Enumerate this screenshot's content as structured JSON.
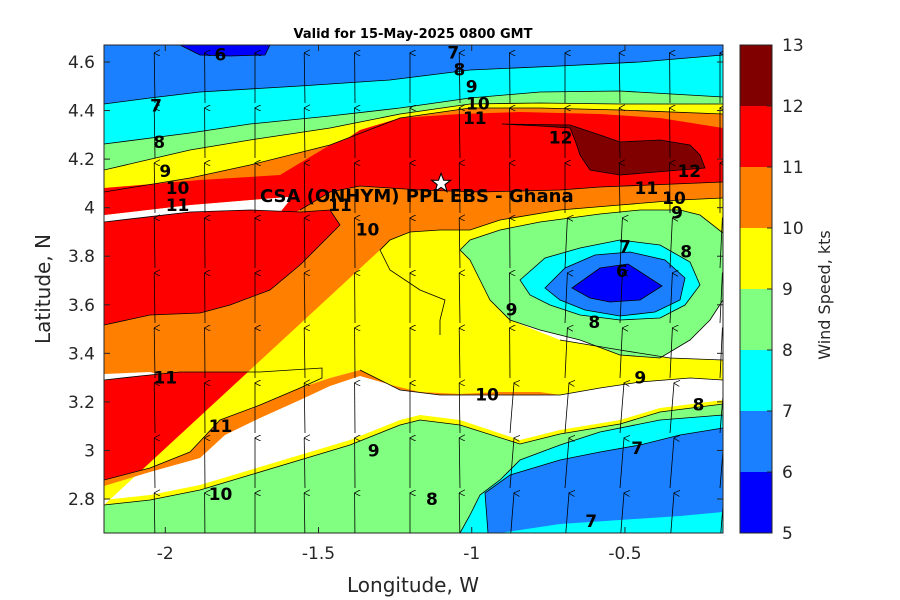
{
  "chart_data": {
    "type": "heatmap",
    "title": "Valid for 15-May-2025 0800 GMT",
    "xlabel": "Longitude, W",
    "ylabel": "Latitude, N",
    "colorbar_label": "Wind Speed, kts",
    "xlim": [
      -2.2,
      -0.18
    ],
    "ylim": [
      2.66,
      4.67
    ],
    "xticks": [
      -2,
      -1.5,
      -1,
      -0.5
    ],
    "xtick_labels": [
      "-2",
      "-1.5",
      "-1",
      "-0.5"
    ],
    "yticks": [
      2.8,
      3,
      3.2,
      3.4,
      3.6,
      3.8,
      4,
      4.2,
      4.4,
      4.6
    ],
    "ytick_labels": [
      "2.8",
      "3",
      "3.2",
      "3.4",
      "3.6",
      "3.8",
      "4",
      "4.2",
      "4.4",
      "4.6"
    ],
    "colorbar_ticks": [
      5,
      6,
      7,
      8,
      9,
      10,
      11,
      12,
      13
    ],
    "colorbar_tick_labels": [
      "5",
      "6",
      "7",
      "8",
      "9",
      "10",
      "11",
      "12",
      "13"
    ],
    "colorbar_levels": [
      {
        "min": 5,
        "max": 6,
        "color": "#0000ff"
      },
      {
        "min": 6,
        "max": 7,
        "color": "#1a80ff"
      },
      {
        "min": 7,
        "max": 8,
        "color": "#00ffff"
      },
      {
        "min": 8,
        "max": 9,
        "color": "#80ff80"
      },
      {
        "min": 9,
        "max": 10,
        "color": "#ffff00"
      },
      {
        "min": 10,
        "max": 11,
        "color": "#ff8000"
      },
      {
        "min": 11,
        "max": 12,
        "color": "#ff0000"
      },
      {
        "min": 12,
        "max": 13,
        "color": "#800000"
      }
    ],
    "site": {
      "name": "CSA (ONHYM) PPL EBS  - Ghana",
      "lon": -1.1,
      "lat": 4.1
    },
    "contour_labels": [
      {
        "text": "6",
        "lon": -1.82,
        "lat": 4.63
      },
      {
        "text": "7",
        "lon": -1.06,
        "lat": 4.64
      },
      {
        "text": "8",
        "lon": -1.04,
        "lat": 4.57
      },
      {
        "text": "9",
        "lon": -1.0,
        "lat": 4.5
      },
      {
        "text": "10",
        "lon": -0.98,
        "lat": 4.43
      },
      {
        "text": "11",
        "lon": -0.99,
        "lat": 4.37
      },
      {
        "text": "7",
        "lon": -2.03,
        "lat": 4.42
      },
      {
        "text": "8",
        "lon": -2.02,
        "lat": 4.27
      },
      {
        "text": "9",
        "lon": -2.0,
        "lat": 4.15
      },
      {
        "text": "10",
        "lon": -1.96,
        "lat": 4.08
      },
      {
        "text": "11",
        "lon": -1.96,
        "lat": 4.01
      },
      {
        "text": "12",
        "lon": -0.71,
        "lat": 4.29
      },
      {
        "text": "12",
        "lon": -0.29,
        "lat": 4.15
      },
      {
        "text": "11",
        "lon": -0.43,
        "lat": 4.08
      },
      {
        "text": "10",
        "lon": -0.34,
        "lat": 4.04
      },
      {
        "text": "9",
        "lon": -0.33,
        "lat": 3.98
      },
      {
        "text": "8",
        "lon": -0.3,
        "lat": 3.82
      },
      {
        "text": "7",
        "lon": -0.5,
        "lat": 3.84
      },
      {
        "text": "6",
        "lon": -0.51,
        "lat": 3.74
      },
      {
        "text": "8",
        "lon": -0.6,
        "lat": 3.53
      },
      {
        "text": "9",
        "lon": -0.87,
        "lat": 3.58
      },
      {
        "text": "10",
        "lon": -1.34,
        "lat": 3.91
      },
      {
        "text": "11",
        "lon": -1.43,
        "lat": 4.01
      },
      {
        "text": "11",
        "lon": -2.0,
        "lat": 3.3
      },
      {
        "text": "11",
        "lon": -1.82,
        "lat": 3.1
      },
      {
        "text": "10",
        "lon": -0.95,
        "lat": 3.23
      },
      {
        "text": "9",
        "lon": -1.32,
        "lat": 3.0
      },
      {
        "text": "8",
        "lon": -1.13,
        "lat": 2.8
      },
      {
        "text": "10",
        "lon": -1.82,
        "lat": 2.82
      },
      {
        "text": "9",
        "lon": -0.45,
        "lat": 3.3
      },
      {
        "text": "8",
        "lon": -0.26,
        "lat": 3.19
      },
      {
        "text": "7",
        "lon": -0.46,
        "lat": 3.01
      },
      {
        "text": "7",
        "lon": -0.61,
        "lat": 2.71
      }
    ]
  }
}
